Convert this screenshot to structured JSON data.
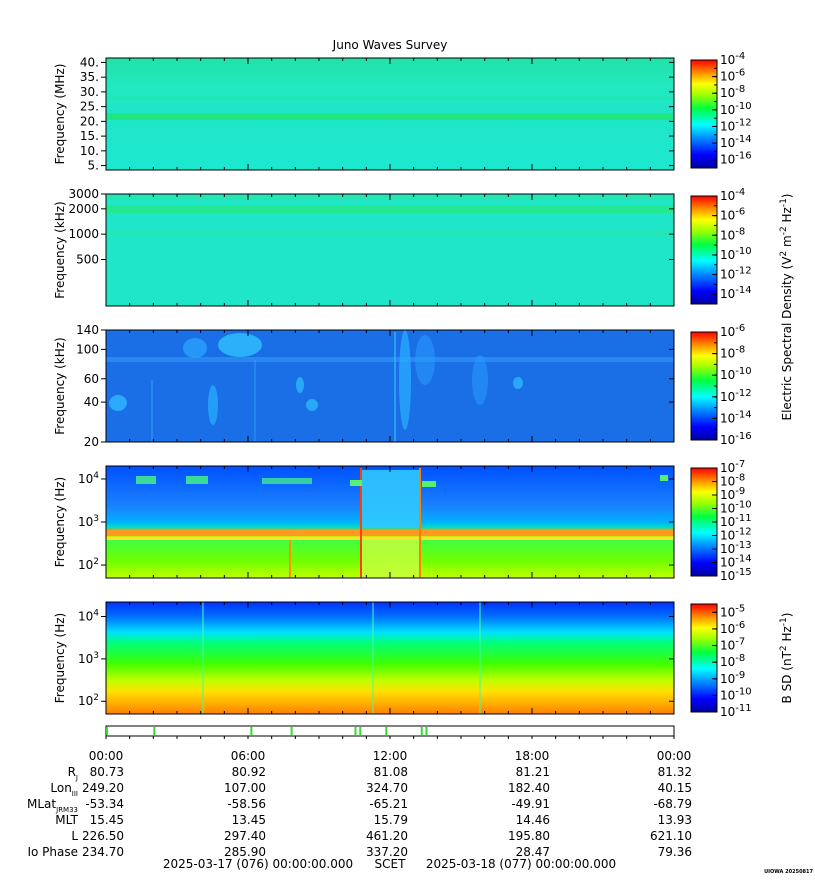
{
  "title": "Juno Waves Survey",
  "credit": "UIOWA 20250817",
  "colors": {
    "tick": "#000000",
    "bg": "#ffffff",
    "teal": "#1fe6c8",
    "blue_bg": "#1a6ee6",
    "mark": "#33dd33"
  },
  "panels": [
    {
      "id": "mhz",
      "ylabel": "Frequency (MHz)",
      "scale": "linear",
      "ticks": [
        "40.",
        "35.",
        "30.",
        "25.",
        "20.",
        "15.",
        "10.",
        "5."
      ],
      "tick_values": [
        40,
        35,
        30,
        25,
        20,
        15,
        10,
        5
      ],
      "ylim": [
        3.5,
        41.5
      ],
      "cbar": {
        "exps": [
          "-4",
          "-6",
          "-8",
          "-10",
          "-12",
          "-14",
          "-16"
        ],
        "range": [
          -17,
          -4
        ]
      }
    },
    {
      "id": "khz_hi",
      "ylabel": "Frequency (kHz)",
      "scale": "log",
      "ticks": [
        "3000",
        "2000",
        "1000",
        "500"
      ],
      "tick_values": [
        3000,
        2000,
        1000,
        500
      ],
      "ylim": [
        140,
        3000
      ],
      "cbar": {
        "exps": [
          "-4",
          "-6",
          "-8",
          "-10",
          "-12",
          "-14"
        ],
        "range": [
          -15,
          -4
        ]
      }
    },
    {
      "id": "khz_lo",
      "ylabel": "Frequency (kHz)",
      "scale": "log",
      "ticks": [
        "140",
        "100",
        "60",
        "40",
        "20"
      ],
      "tick_values": [
        140,
        100,
        60,
        40,
        20
      ],
      "ylim": [
        20,
        140
      ],
      "cbar": {
        "exps": [
          "-6",
          "-8",
          "-10",
          "-12",
          "-14",
          "-16"
        ],
        "range": [
          -16,
          -6
        ]
      }
    },
    {
      "id": "hz_e",
      "ylabel": "Frequency (Hz)",
      "scale": "log",
      "ticks": [
        {
          "base": "10",
          "exp": "4"
        },
        {
          "base": "10",
          "exp": "3"
        },
        {
          "base": "10",
          "exp": "2"
        }
      ],
      "tick_values": [
        10000,
        1000,
        100
      ],
      "ylim": [
        50,
        20000
      ],
      "cbar": {
        "exps": [
          "-7",
          "-8",
          "-9",
          "-10",
          "-11",
          "-12",
          "-13",
          "-14",
          "-15"
        ],
        "range": [
          -15,
          -7
        ]
      }
    },
    {
      "id": "hz_b",
      "ylabel": "Frequency (Hz)",
      "scale": "log",
      "ticks": [
        {
          "base": "10",
          "exp": "4"
        },
        {
          "base": "10",
          "exp": "3"
        },
        {
          "base": "10",
          "exp": "2"
        }
      ],
      "tick_values": [
        10000,
        1000,
        100
      ],
      "ylim": [
        50,
        22000
      ],
      "cbar": {
        "exps": [
          "-5",
          "-6",
          "-7",
          "-8",
          "-9",
          "-10",
          "-11"
        ],
        "range": [
          -11,
          -4.5
        ]
      }
    }
  ],
  "e_cbar_label": {
    "text": "Electric Spectral Density (V",
    "sup1": "2",
    "mid1": " m",
    "sup2": "-2",
    "mid2": " Hz",
    "sup3": "-1",
    "end": ")"
  },
  "b_cbar_label": {
    "text": "B SD (nT",
    "sup1": "2",
    "mid": " Hz",
    "sup2": "-1",
    "end": ")"
  },
  "chart_data": {
    "type": "heatmap",
    "title": "Juno Waves Survey",
    "x_ticks": [
      "00:00",
      "06:00",
      "12:00",
      "18:00",
      "00:00"
    ],
    "x_range_hours": [
      0,
      24
    ],
    "mode_marks_hours": [
      0.0,
      2.0,
      6.1,
      7.8,
      10.5,
      10.7,
      11.8,
      13.3,
      13.5
    ],
    "ephemeris": [
      {
        "label": "R",
        "sub": "J",
        "values": [
          "80.73",
          "80.92",
          "81.08",
          "81.21",
          "81.32"
        ]
      },
      {
        "label": "Lon",
        "sub": "III",
        "values": [
          "249.20",
          "107.00",
          "324.70",
          "182.40",
          "40.15"
        ]
      },
      {
        "label": "MLat",
        "sub": "JRM33",
        "values": [
          "-53.34",
          "-58.56",
          "-65.21",
          "-49.91",
          "-68.79"
        ]
      },
      {
        "label": "MLT",
        "sub": "",
        "values": [
          "15.45",
          "13.45",
          "15.79",
          "14.46",
          "13.93"
        ]
      },
      {
        "label": "L",
        "sub": "",
        "values": [
          "226.50",
          "297.40",
          "461.20",
          "195.80",
          "621.10"
        ]
      },
      {
        "label": "Io Phase",
        "sub": "",
        "values": [
          "234.70",
          "285.90",
          "337.20",
          "28.47",
          "79.36"
        ]
      }
    ],
    "footer": {
      "start": "2025-03-17 (076) 00:00:00.000",
      "mid": "SCET",
      "end": "2025-03-18 (077) 00:00:00.000"
    }
  }
}
